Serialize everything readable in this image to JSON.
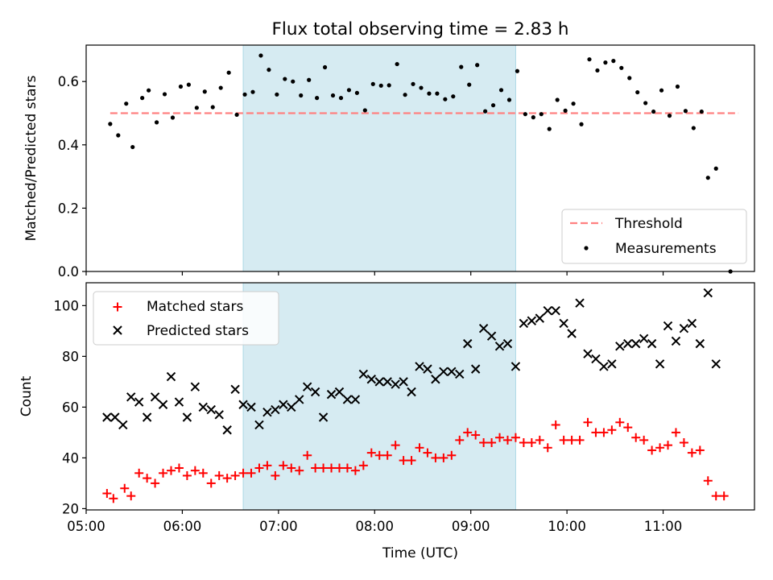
{
  "chart_data": [
    {
      "type": "scatter",
      "title": "Flux total observing time = 2.83 h",
      "xlabel": "",
      "ylabel": "Matched/Predicted stars",
      "xlim": [
        "05:00",
        "11:57"
      ],
      "ylim": [
        0,
        0.715
      ],
      "yticks": [
        "0.0",
        "0.2",
        "0.4",
        "0.6"
      ],
      "highlight_span": {
        "start": "06:38",
        "end": "09:28",
        "color": "#add8e6"
      },
      "threshold": {
        "name": "Threshold",
        "value": 0.5,
        "start": "05:15",
        "end": "11:47",
        "color": "#ff8080"
      },
      "legend": {
        "placement": "lower-right",
        "entries": [
          "Threshold",
          "Measurements"
        ]
      },
      "series": [
        {
          "name": "Measurements",
          "color": "#000000",
          "marker": "dot",
          "points": [
            [
              "05:15",
              0.466
            ],
            [
              "05:20",
              0.43
            ],
            [
              "05:25",
              0.53
            ],
            [
              "05:29",
              0.393
            ],
            [
              "05:35",
              0.548
            ],
            [
              "05:39",
              0.572
            ],
            [
              "05:44",
              0.471
            ],
            [
              "05:49",
              0.56
            ],
            [
              "05:54",
              0.486
            ],
            [
              "05:59",
              0.584
            ],
            [
              "06:04",
              0.59
            ],
            [
              "06:09",
              0.517
            ],
            [
              "06:14",
              0.568
            ],
            [
              "06:19",
              0.519
            ],
            [
              "06:24",
              0.58
            ],
            [
              "06:29",
              0.628
            ],
            [
              "06:34",
              0.495
            ],
            [
              "06:39",
              0.559
            ],
            [
              "06:44",
              0.567
            ],
            [
              "06:49",
              0.682
            ],
            [
              "06:54",
              0.637
            ],
            [
              "06:59",
              0.559
            ],
            [
              "07:04",
              0.608
            ],
            [
              "07:09",
              0.6
            ],
            [
              "07:14",
              0.556
            ],
            [
              "07:19",
              0.605
            ],
            [
              "07:24",
              0.548
            ],
            [
              "07:29",
              0.645
            ],
            [
              "07:34",
              0.556
            ],
            [
              "07:39",
              0.548
            ],
            [
              "07:44",
              0.573
            ],
            [
              "07:49",
              0.564
            ],
            [
              "07:54",
              0.509
            ],
            [
              "07:59",
              0.592
            ],
            [
              "08:04",
              0.587
            ],
            [
              "08:09",
              0.588
            ],
            [
              "08:14",
              0.655
            ],
            [
              "08:19",
              0.558
            ],
            [
              "08:24",
              0.592
            ],
            [
              "08:29",
              0.58
            ],
            [
              "08:34",
              0.562
            ],
            [
              "08:39",
              0.562
            ],
            [
              "08:44",
              0.544
            ],
            [
              "08:49",
              0.553
            ],
            [
              "08:54",
              0.646
            ],
            [
              "08:59",
              0.59
            ],
            [
              "09:04",
              0.652
            ],
            [
              "09:09",
              0.506
            ],
            [
              "09:14",
              0.525
            ],
            [
              "09:19",
              0.573
            ],
            [
              "09:24",
              0.542
            ],
            [
              "09:29",
              0.633
            ],
            [
              "09:34",
              0.497
            ],
            [
              "09:39",
              0.487
            ],
            [
              "09:44",
              0.497
            ],
            [
              "09:49",
              0.45
            ],
            [
              "09:54",
              0.542
            ],
            [
              "09:59",
              0.508
            ],
            [
              "10:04",
              0.53
            ],
            [
              "10:09",
              0.465
            ],
            [
              "10:14",
              0.67
            ],
            [
              "10:19",
              0.635
            ],
            [
              "10:24",
              0.66
            ],
            [
              "10:29",
              0.665
            ],
            [
              "10:34",
              0.643
            ],
            [
              "10:39",
              0.611
            ],
            [
              "10:44",
              0.566
            ],
            [
              "10:49",
              0.532
            ],
            [
              "10:54",
              0.505
            ],
            [
              "10:59",
              0.572
            ],
            [
              "11:04",
              0.492
            ],
            [
              "11:09",
              0.584
            ],
            [
              "11:14",
              0.507
            ],
            [
              "11:19",
              0.453
            ],
            [
              "11:24",
              0.505
            ],
            [
              "11:28",
              0.296
            ],
            [
              "11:33",
              0.325
            ],
            [
              "11:42",
              0.0
            ]
          ]
        }
      ]
    },
    {
      "type": "scatter",
      "title": "",
      "xlabel": "Time (UTC)",
      "ylabel": "Count",
      "xlim": [
        "05:00",
        "11:57"
      ],
      "ylim": [
        19.5,
        109
      ],
      "yticks": [
        "20",
        "40",
        "60",
        "80",
        "100"
      ],
      "xticks": [
        "05:00",
        "06:00",
        "07:00",
        "08:00",
        "09:00",
        "10:00",
        "11:00"
      ],
      "highlight_span": {
        "start": "06:38",
        "end": "09:28",
        "color": "#add8e6"
      },
      "legend": {
        "placement": "upper-left",
        "entries": [
          "Matched stars",
          "Predicted stars"
        ]
      },
      "series": [
        {
          "name": "Matched stars",
          "color": "#ff0000",
          "marker": "plus",
          "points": [
            [
              "05:13",
              26
            ],
            [
              "05:17",
              24
            ],
            [
              "05:24",
              28
            ],
            [
              "05:28",
              25
            ],
            [
              "05:33",
              34
            ],
            [
              "05:38",
              32
            ],
            [
              "05:43",
              30
            ],
            [
              "05:48",
              34
            ],
            [
              "05:53",
              35
            ],
            [
              "05:58",
              36
            ],
            [
              "06:03",
              33
            ],
            [
              "06:08",
              35
            ],
            [
              "06:13",
              34
            ],
            [
              "06:18",
              30
            ],
            [
              "06:23",
              33
            ],
            [
              "06:28",
              32
            ],
            [
              "06:33",
              33
            ],
            [
              "06:38",
              34
            ],
            [
              "06:43",
              34
            ],
            [
              "06:48",
              36
            ],
            [
              "06:53",
              37
            ],
            [
              "06:58",
              33
            ],
            [
              "07:03",
              37
            ],
            [
              "07:08",
              36
            ],
            [
              "07:13",
              35
            ],
            [
              "07:18",
              41
            ],
            [
              "07:23",
              36
            ],
            [
              "07:28",
              36
            ],
            [
              "07:33",
              36
            ],
            [
              "07:38",
              36
            ],
            [
              "07:43",
              36
            ],
            [
              "07:48",
              35
            ],
            [
              "07:53",
              37
            ],
            [
              "07:58",
              42
            ],
            [
              "08:03",
              41
            ],
            [
              "08:08",
              41
            ],
            [
              "08:13",
              45
            ],
            [
              "08:18",
              39
            ],
            [
              "08:23",
              39
            ],
            [
              "08:28",
              44
            ],
            [
              "08:33",
              42
            ],
            [
              "08:38",
              40
            ],
            [
              "08:43",
              40
            ],
            [
              "08:48",
              41
            ],
            [
              "08:53",
              47
            ],
            [
              "08:58",
              50
            ],
            [
              "09:03",
              49
            ],
            [
              "09:08",
              46
            ],
            [
              "09:13",
              46
            ],
            [
              "09:18",
              48
            ],
            [
              "09:23",
              47
            ],
            [
              "09:28",
              48
            ],
            [
              "09:33",
              46
            ],
            [
              "09:38",
              46
            ],
            [
              "09:43",
              47
            ],
            [
              "09:48",
              44
            ],
            [
              "09:53",
              53
            ],
            [
              "09:58",
              47
            ],
            [
              "10:03",
              47
            ],
            [
              "10:08",
              47
            ],
            [
              "10:13",
              54
            ],
            [
              "10:18",
              50
            ],
            [
              "10:23",
              50
            ],
            [
              "10:28",
              51
            ],
            [
              "10:33",
              54
            ],
            [
              "10:38",
              52
            ],
            [
              "10:43",
              48
            ],
            [
              "10:48",
              47
            ],
            [
              "10:53",
              43
            ],
            [
              "10:58",
              44
            ],
            [
              "11:03",
              45
            ],
            [
              "11:08",
              50
            ],
            [
              "11:13",
              46
            ],
            [
              "11:18",
              42
            ],
            [
              "11:23",
              43
            ],
            [
              "11:28",
              31
            ],
            [
              "11:33",
              25
            ],
            [
              "11:38",
              25
            ]
          ]
        },
        {
          "name": "Predicted stars",
          "color": "#000000",
          "marker": "x",
          "points": [
            [
              "05:13",
              56
            ],
            [
              "05:18",
              56
            ],
            [
              "05:23",
              53
            ],
            [
              "05:28",
              64
            ],
            [
              "05:33",
              62
            ],
            [
              "05:38",
              56
            ],
            [
              "05:43",
              64
            ],
            [
              "05:48",
              61
            ],
            [
              "05:53",
              72
            ],
            [
              "05:58",
              62
            ],
            [
              "06:03",
              56
            ],
            [
              "06:08",
              68
            ],
            [
              "06:13",
              60
            ],
            [
              "06:18",
              59
            ],
            [
              "06:23",
              57
            ],
            [
              "06:28",
              51
            ],
            [
              "06:33",
              67
            ],
            [
              "06:38",
              61
            ],
            [
              "06:43",
              60
            ],
            [
              "06:48",
              53
            ],
            [
              "06:53",
              58
            ],
            [
              "06:58",
              59
            ],
            [
              "07:03",
              61
            ],
            [
              "07:08",
              60
            ],
            [
              "07:13",
              63
            ],
            [
              "07:18",
              68
            ],
            [
              "07:23",
              66
            ],
            [
              "07:28",
              56
            ],
            [
              "07:33",
              65
            ],
            [
              "07:38",
              66
            ],
            [
              "07:43",
              63
            ],
            [
              "07:48",
              63
            ],
            [
              "07:53",
              73
            ],
            [
              "07:58",
              71
            ],
            [
              "08:03",
              70
            ],
            [
              "08:08",
              70
            ],
            [
              "08:13",
              69
            ],
            [
              "08:18",
              70
            ],
            [
              "08:23",
              66
            ],
            [
              "08:28",
              76
            ],
            [
              "08:33",
              75
            ],
            [
              "08:38",
              71
            ],
            [
              "08:43",
              74
            ],
            [
              "08:48",
              74
            ],
            [
              "08:53",
              73
            ],
            [
              "08:58",
              85
            ],
            [
              "09:03",
              75
            ],
            [
              "09:08",
              91
            ],
            [
              "09:13",
              88
            ],
            [
              "09:18",
              84
            ],
            [
              "09:23",
              85
            ],
            [
              "09:28",
              76
            ],
            [
              "09:33",
              93
            ],
            [
              "09:38",
              94
            ],
            [
              "09:43",
              95
            ],
            [
              "09:48",
              98
            ],
            [
              "09:53",
              98
            ],
            [
              "09:58",
              93
            ],
            [
              "10:03",
              89
            ],
            [
              "10:08",
              101
            ],
            [
              "10:13",
              81
            ],
            [
              "10:18",
              79
            ],
            [
              "10:23",
              76
            ],
            [
              "10:28",
              77
            ],
            [
              "10:33",
              84
            ],
            [
              "10:38",
              85
            ],
            [
              "10:43",
              85
            ],
            [
              "10:48",
              87
            ],
            [
              "10:53",
              85
            ],
            [
              "10:58",
              77
            ],
            [
              "11:03",
              92
            ],
            [
              "11:08",
              86
            ],
            [
              "11:13",
              91
            ],
            [
              "11:18",
              93
            ],
            [
              "11:23",
              85
            ],
            [
              "11:28",
              105
            ],
            [
              "11:33",
              77
            ]
          ]
        }
      ]
    }
  ]
}
